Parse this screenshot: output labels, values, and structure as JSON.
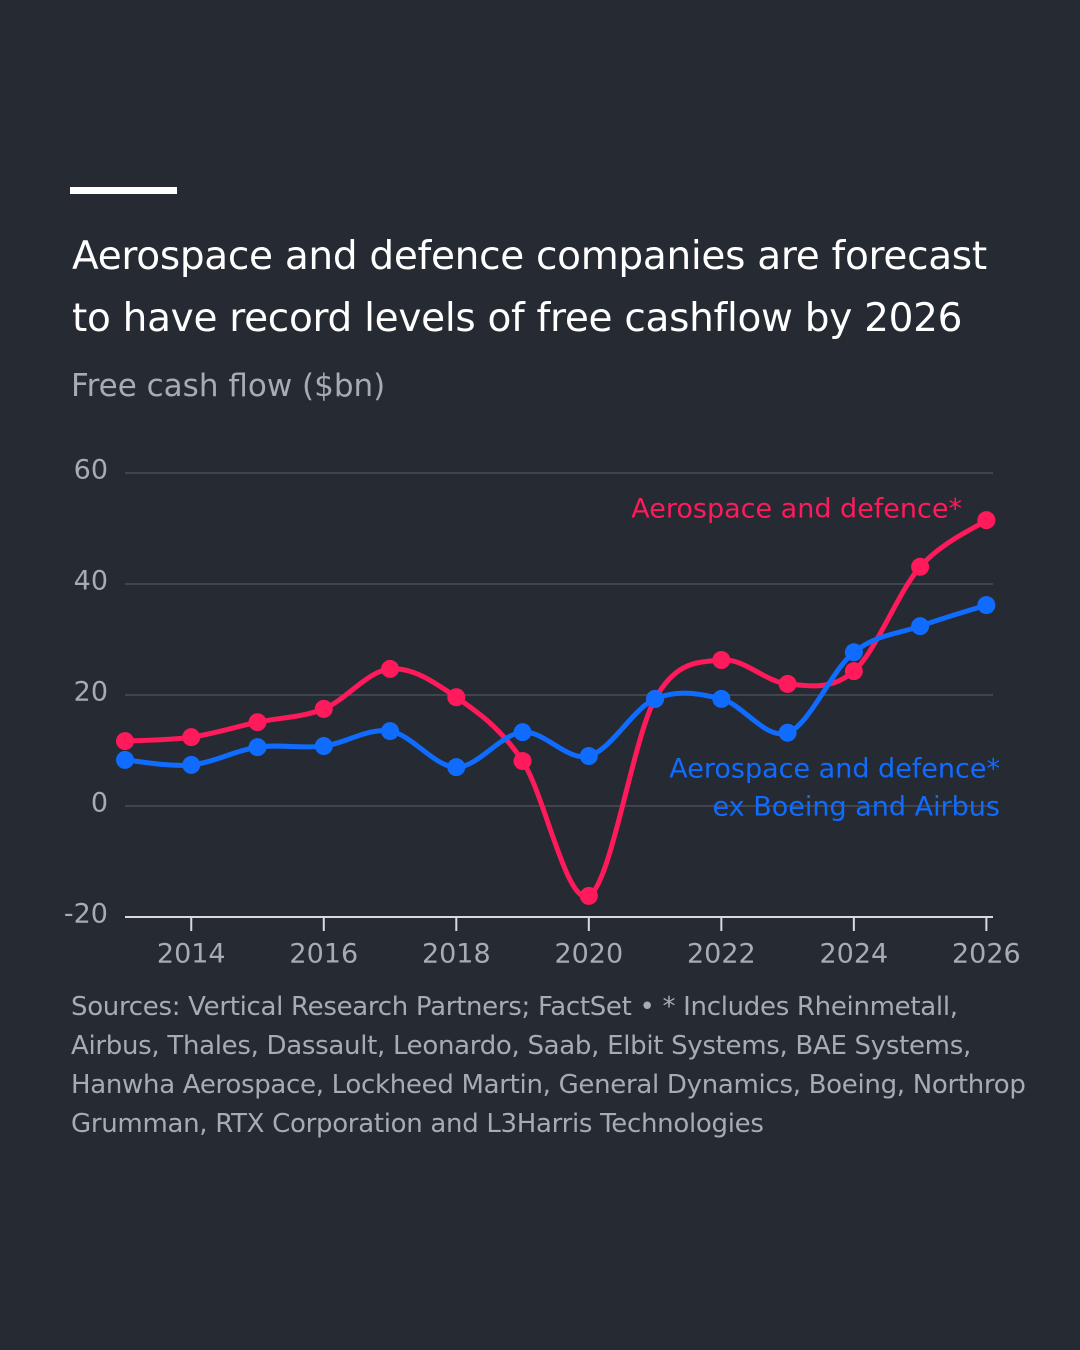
{
  "chart_data": {
    "type": "line",
    "title": "Aerospace and defence companies are forecast to have record levels of free cashflow by 2026",
    "subtitle": "Free cash flow ($bn)",
    "source": "Sources: Vertical Research Partners; FactSet • * Includes Rheinmetall, Airbus, Thales, Dassault, Leonardo, Saab, Elbit Systems, BAE Systems, Hanwha Aerospace, Lockheed Martin, General Dynamics, Boeing, Northrop Grumman, RTX Corporation and L3Harris Technologies",
    "x": [
      2013,
      2014,
      2015,
      2016,
      2017,
      2018,
      2019,
      2020,
      2021,
      2022,
      2023,
      2024,
      2025,
      2026
    ],
    "series": [
      {
        "name": [
          "Aerospace and defence*"
        ],
        "color": "#ff1a5c",
        "values": [
          11.7,
          12.4,
          15.1,
          17.5,
          24.7,
          19.6,
          8.1,
          -16.2,
          19.3,
          26.3,
          22.0,
          24.3,
          43.1,
          51.5
        ]
      },
      {
        "name": [
          "Aerospace and defence*",
          "ex Boeing and Airbus"
        ],
        "color": "#0f6cff",
        "values": [
          8.3,
          7.4,
          10.6,
          10.8,
          13.5,
          7.0,
          13.3,
          9.0,
          19.3,
          19.3,
          13.2,
          27.7,
          32.4,
          36.2
        ]
      }
    ],
    "xlim": [
      2013,
      2026.1
    ],
    "xticks": [
      2014,
      2016,
      2018,
      2020,
      2022,
      2024,
      2026
    ],
    "ylim": [
      -20,
      60
    ],
    "yticks": [
      -20,
      0,
      20,
      40,
      60
    ],
    "grid": true
  }
}
